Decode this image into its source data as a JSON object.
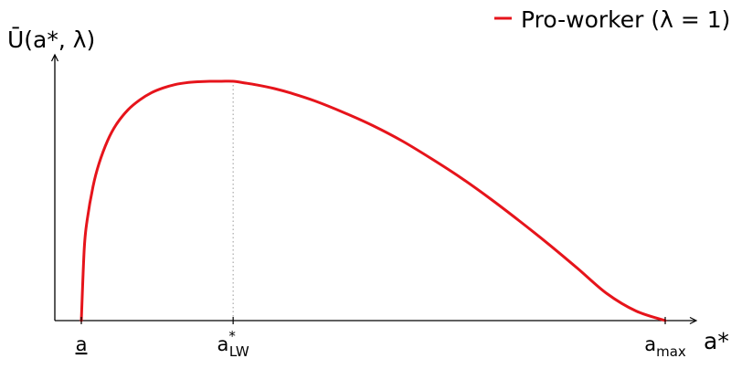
{
  "chart_data": {
    "type": "line",
    "title": "",
    "xlabel": "a*",
    "ylabel": "Ū(a*, λ)",
    "x_ticks": [
      {
        "main": "a",
        "sub": "",
        "sup": "",
        "underline": true,
        "x": 0.0
      },
      {
        "main": "a",
        "sub": "LW",
        "sup": "*",
        "underline": false,
        "x": 0.26
      },
      {
        "main": "a",
        "sub": "max",
        "sup": "",
        "underline": false,
        "x": 1.0
      }
    ],
    "xlim": [
      0,
      1
    ],
    "ylim": [
      0,
      1
    ],
    "grid": false,
    "legend": {
      "position": "top-right"
    },
    "reference_line": {
      "style": "dotted",
      "x": 0.26,
      "color": "#888888"
    },
    "series": [
      {
        "name": "Pro-worker (λ = 1)",
        "color": "#e6141b",
        "x": [
          0.0,
          0.005,
          0.01,
          0.02,
          0.03,
          0.045,
          0.06,
          0.08,
          0.1,
          0.12,
          0.14,
          0.16,
          0.18,
          0.2,
          0.22,
          0.24,
          0.26,
          0.28,
          0.3,
          0.33,
          0.36,
          0.4,
          0.45,
          0.5,
          0.55,
          0.6,
          0.65,
          0.7,
          0.75,
          0.8,
          0.85,
          0.9,
          0.95,
          1.0
        ],
        "values": [
          0.0,
          0.3,
          0.42,
          0.56,
          0.654,
          0.752,
          0.82,
          0.881,
          0.922,
          0.952,
          0.972,
          0.986,
          0.994,
          0.998,
          1.0,
          1.0,
          1.0,
          0.993,
          0.985,
          0.97,
          0.95,
          0.918,
          0.869,
          0.814,
          0.75,
          0.676,
          0.597,
          0.51,
          0.417,
          0.32,
          0.218,
          0.113,
          0.04,
          0.0
        ]
      }
    ]
  }
}
